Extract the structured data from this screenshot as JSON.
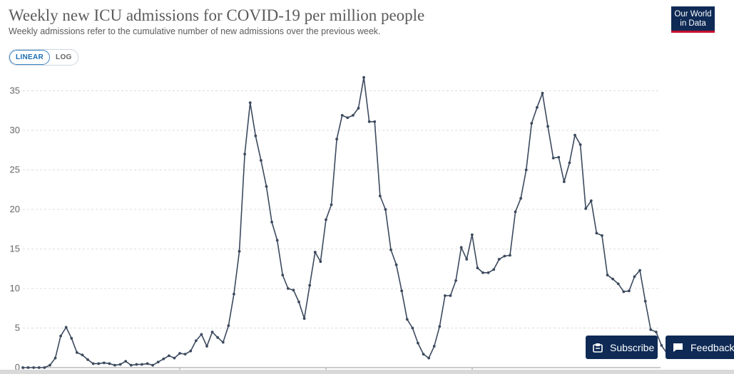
{
  "header": {
    "title": "Weekly new ICU admissions for COVID-19 per million people",
    "subtitle": "Weekly admissions refer to the cumulative number of new admissions over the previous week.",
    "logo_line1": "Our World",
    "logo_line2": "in Data"
  },
  "controls": {
    "linear_label": "LINEAR",
    "log_label": "LOG",
    "selected": "LINEAR"
  },
  "buttons": {
    "subscribe_label": "Subscribe",
    "feedback_label": "Feedback"
  },
  "colors": {
    "line": "#3c4a5e",
    "grid": "#dddddd",
    "logo_bg": "#0e2a55",
    "logo_accent": "#c8102e",
    "button_bg": "#0e2a55",
    "toggle_active": "#1a6fb5"
  },
  "icons": {
    "subscribe": "subscribe-icon",
    "feedback": "chat-bubble-icon"
  },
  "chart_data": {
    "type": "line",
    "title": "Weekly new ICU admissions for COVID-19 per million people",
    "xlabel": "",
    "ylabel": "",
    "ylim": [
      0,
      35
    ],
    "yticks": [
      0,
      5,
      10,
      15,
      20,
      25,
      30,
      35
    ],
    "grid": true,
    "legend": "none",
    "series": [
      {
        "values": [
          0,
          0,
          0,
          0,
          0,
          0.3,
          1.2,
          4.0,
          5.1,
          3.7,
          1.9,
          1.6,
          1.0,
          0.5,
          0.5,
          0.6,
          0.5,
          0.3,
          0.4,
          0.8,
          0.3,
          0.4,
          0.4,
          0.5,
          0.3,
          0.7,
          1.1,
          1.5,
          1.2,
          1.8,
          1.7,
          2.1,
          3.4,
          4.2,
          2.7,
          4.5,
          3.8,
          3.2,
          5.3,
          9.3,
          14.7,
          27.0,
          33.5,
          29.3,
          26.2,
          22.9,
          18.4,
          16.1,
          11.7,
          10.0,
          9.8,
          8.3,
          6.2,
          10.4,
          14.6,
          13.4,
          18.7,
          20.6,
          28.9,
          31.9,
          31.6,
          31.9,
          32.8,
          36.7,
          31.1,
          31.1,
          21.7,
          20.0,
          14.9,
          13.0,
          9.7,
          6.1,
          5.0,
          3.1,
          1.7,
          1.2,
          2.7,
          5.2,
          9.1,
          9.1,
          11.0,
          15.2,
          13.7,
          16.8,
          12.6,
          12.0,
          12.0,
          12.4,
          13.7,
          14.1,
          14.2,
          19.7,
          21.4,
          25.0,
          30.9,
          32.9,
          34.7,
          30.5,
          26.5,
          26.6,
          23.5,
          25.9,
          29.4,
          28.2,
          20.1,
          21.1,
          17.0,
          16.7,
          11.7,
          11.2,
          10.6,
          9.6,
          9.7,
          11.5,
          12.3,
          8.4,
          4.8,
          4.5,
          2.8,
          1.8
        ]
      }
    ]
  }
}
